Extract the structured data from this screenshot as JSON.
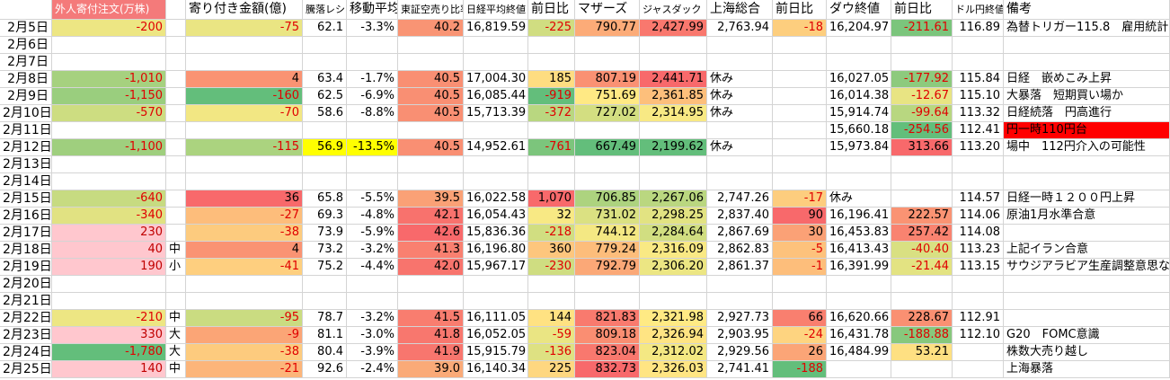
{
  "table": {
    "header": [
      null,
      "外人寄付注文(万株)",
      null,
      "寄り付き金額(億)",
      "騰落レシオ",
      "移動平均",
      "東証空売り比率",
      "日経平均終値",
      "前日比",
      "マザーズ",
      "ジャスダック",
      "上海総合",
      "前日比",
      "ダウ終値",
      "前日比",
      "ドル円終値",
      "備考"
    ],
    "rows": [
      [
        "2月5日",
        "-200",
        null,
        "-75",
        "62.1",
        "-3.3%",
        "40.2",
        "16,819.59",
        "-225",
        "790.77",
        "2,427.99",
        "2,763.94",
        "-18",
        "16,204.97",
        "-211.61",
        "116.89",
        "為替トリガー115.8　雇用統計"
      ],
      [
        "2月6日",
        null,
        null,
        null,
        null,
        null,
        null,
        null,
        null,
        null,
        null,
        null,
        null,
        null,
        null,
        null,
        null
      ],
      [
        "2月7日",
        null,
        null,
        null,
        null,
        null,
        null,
        null,
        null,
        null,
        null,
        null,
        null,
        null,
        null,
        null,
        null
      ],
      [
        "2月8日",
        "-1,010",
        null,
        "4",
        "63.4",
        "-1.7%",
        "40.5",
        "17,004.30",
        "185",
        "807.19",
        "2,441.71",
        "休み",
        null,
        "16,027.05",
        "-177.92",
        "115.84",
        "日経　嵌めこみ上昇"
      ],
      [
        "2月9日",
        "-1,150",
        null,
        "-160",
        "62.5",
        "-6.9%",
        "40.5",
        "16,085.44",
        "-919",
        "751.69",
        "2,361.85",
        "休み",
        null,
        "16,014.38",
        "-12.67",
        "115.10",
        "大暴落　短期買い場か"
      ],
      [
        "2月10日",
        "-570",
        null,
        "-70",
        "58.6",
        "-8.8%",
        "40.5",
        "15,713.39",
        "-372",
        "727.02",
        "2,314.95",
        "休み",
        null,
        "15,914.74",
        "-99.64",
        "113.32",
        "日経続落　円高進行"
      ],
      [
        "2月11日",
        null,
        null,
        null,
        null,
        null,
        null,
        null,
        null,
        null,
        null,
        null,
        null,
        "15,660.18",
        "-254.56",
        "112.41",
        "円一時110円台"
      ],
      [
        "2月12日",
        "-1,100",
        null,
        "-115",
        "56.9",
        "-13.5%",
        "40.5",
        "14,952.61",
        "-761",
        "667.49",
        "2,199.62",
        "休み",
        null,
        "15,973.84",
        "313.66",
        "113.20",
        "場中　112円介入の可能性"
      ],
      [
        "2月13日",
        null,
        null,
        null,
        null,
        null,
        null,
        null,
        null,
        null,
        null,
        null,
        null,
        null,
        null,
        null,
        null
      ],
      [
        "2月14日",
        null,
        null,
        null,
        null,
        null,
        null,
        null,
        null,
        null,
        null,
        null,
        null,
        null,
        null,
        null,
        null
      ],
      [
        "2月15日",
        "-640",
        null,
        "36",
        "65.8",
        "-5.5%",
        "39.5",
        "16,022.58",
        "1,070",
        "706.85",
        "2,267.06",
        "2,747.26",
        "-17",
        "休み",
        null,
        "114.57",
        "日経一時１２００円上昇"
      ],
      [
        "2月16日",
        "-340",
        null,
        "-27",
        "69.3",
        "-4.8%",
        "42.1",
        "16,054.43",
        "32",
        "731.02",
        "2,298.25",
        "2,837.40",
        "90",
        "16,196.41",
        "222.57",
        "114.06",
        "原油1月水準合意"
      ],
      [
        "2月17日",
        "230",
        null,
        "-38",
        "73.9",
        "-5.9%",
        "42.6",
        "15,836.36",
        "-218",
        "744.12",
        "2,284.64",
        "2,867.69",
        "30",
        "16,453.83",
        "257.42",
        "114.08",
        null
      ],
      [
        "2月18日",
        "40",
        "中",
        "4",
        "73.2",
        "-3.2%",
        "41.3",
        "16,196.80",
        "360",
        "779.24",
        "2,316.09",
        "2,862.83",
        "-5",
        "16,413.43",
        "-40.40",
        "113.23",
        "上記イラン合意"
      ],
      [
        "2月19日",
        "190",
        "小",
        "-41",
        "75.2",
        "-4.4%",
        "42.0",
        "15,967.17",
        "-230",
        "792.79",
        "2,306.20",
        "2,861.37",
        "-1",
        "16,391.99",
        "-21.44",
        "113.15",
        "サウジアラビア生産調整意思なし"
      ],
      [
        "2月20日",
        null,
        null,
        null,
        null,
        null,
        null,
        null,
        null,
        null,
        null,
        null,
        null,
        null,
        null,
        null,
        null
      ],
      [
        "2月21日",
        null,
        null,
        null,
        null,
        null,
        null,
        null,
        null,
        null,
        null,
        null,
        null,
        null,
        null,
        null,
        null
      ],
      [
        "2月22日",
        "-210",
        "中",
        "-95",
        "78.7",
        "-3.2%",
        "41.5",
        "16,111.05",
        "144",
        "821.83",
        "2,321.98",
        "2,927.73",
        "66",
        "16,620.66",
        "228.67",
        "112.91",
        null
      ],
      [
        "2月23日",
        "330",
        "大",
        "-9",
        "81.1",
        "-3.0%",
        "41.8",
        "16,052.05",
        "-59",
        "809.18",
        "2,326.94",
        "2,903.95",
        "-24",
        "16,431.78",
        "-188.88",
        "112.10",
        "G20　FOMC意識"
      ],
      [
        "2月24日",
        "-1,780",
        "大",
        "-38",
        "80.4",
        "-3.9%",
        "41.9",
        "15,915.79",
        "-136",
        "823.04",
        "2,312.02",
        "2,929.56",
        "26",
        "16,484.99",
        "53.21",
        null,
        "株数大売り越し"
      ],
      [
        "2月25日",
        "140",
        "中",
        "-21",
        "92.6",
        "-2.4%",
        "39.0",
        "16,140.34",
        "225",
        "832.73",
        "2,326.03",
        "2,741.41",
        "-188",
        null,
        null,
        null,
        "上海暴落"
      ]
    ]
  }
}
